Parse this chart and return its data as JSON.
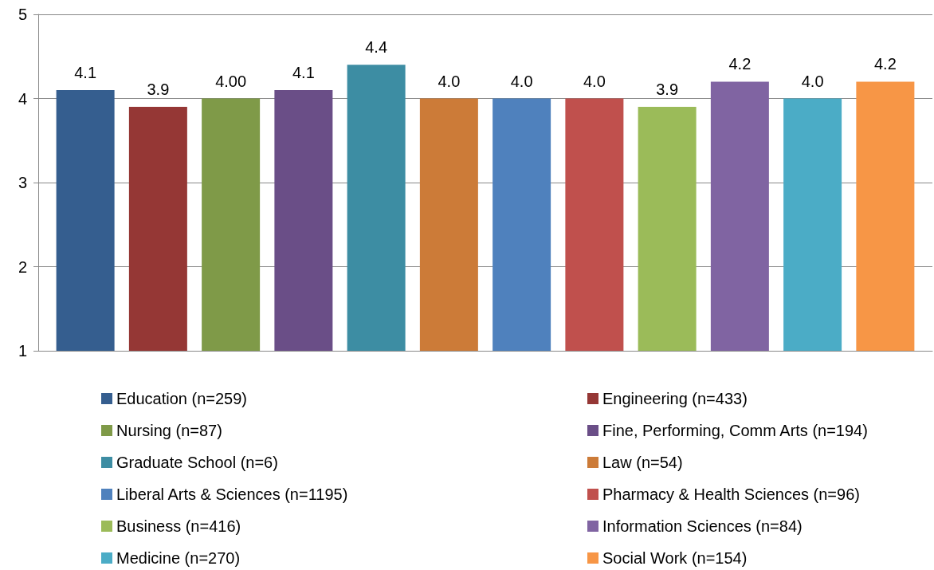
{
  "chart_data": {
    "type": "bar",
    "categories": [
      null
    ],
    "ylim": [
      1,
      5
    ],
    "yticks": [
      1,
      2,
      3,
      4,
      5
    ],
    "grid": "y",
    "legend": "bottom",
    "series": [
      {
        "name": "Education (n=259)",
        "color": "#355e8f",
        "values": [
          4.1
        ],
        "value_labels": [
          "4.1"
        ]
      },
      {
        "name": "Engineering (n=433)",
        "color": "#953735",
        "values": [
          3.9
        ],
        "value_labels": [
          "3.9"
        ]
      },
      {
        "name": "Nursing (n=87)",
        "color": "#7f9a48",
        "values": [
          4.0
        ],
        "value_labels": [
          "4.00"
        ]
      },
      {
        "name": "Fine, Performing, Comm Arts (n=194)",
        "color": "#6a4e87",
        "values": [
          4.1
        ],
        "value_labels": [
          "4.1"
        ]
      },
      {
        "name": "Graduate School (n=6)",
        "color": "#3d8da3",
        "values": [
          4.4
        ],
        "value_labels": [
          "4.4"
        ]
      },
      {
        "name": "Law (n=54)",
        "color": "#cc7b38",
        "values": [
          4.0
        ],
        "value_labels": [
          "4.0"
        ]
      },
      {
        "name": "Liberal Arts & Sciences (n=1195)",
        "color": "#4f81bd",
        "values": [
          4.0
        ],
        "value_labels": [
          "4.0"
        ]
      },
      {
        "name": "Pharmacy & Health Sciences (n=96)",
        "color": "#c0504d",
        "values": [
          4.0
        ],
        "value_labels": [
          "4.0"
        ]
      },
      {
        "name": "Business (n=416)",
        "color": "#9bbb59",
        "values": [
          3.9
        ],
        "value_labels": [
          "3.9"
        ]
      },
      {
        "name": "Information Sciences (n=84)",
        "color": "#8064a2",
        "values": [
          4.2
        ],
        "value_labels": [
          "4.2"
        ]
      },
      {
        "name": "Medicine (n=270)",
        "color": "#4bacc6",
        "values": [
          4.0
        ],
        "value_labels": [
          "4.0"
        ]
      },
      {
        "name": "Social Work (n=154)",
        "color": "#f79646",
        "values": [
          4.2
        ],
        "value_labels": [
          "4.2"
        ]
      }
    ]
  }
}
